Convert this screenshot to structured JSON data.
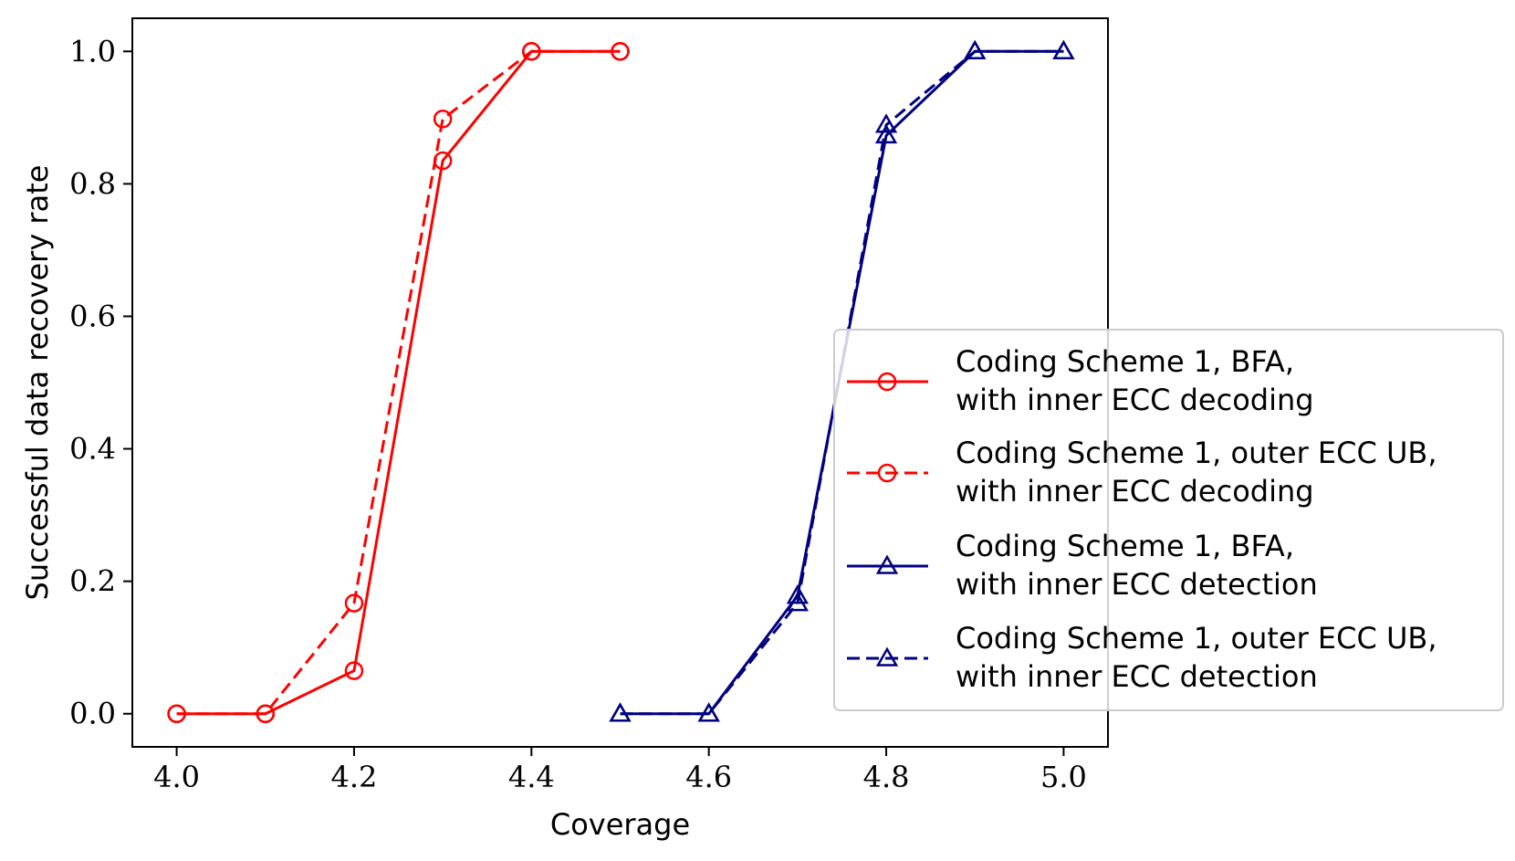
{
  "chart_data": {
    "type": "line",
    "title": "",
    "xlabel": "Coverage",
    "ylabel": "Successful data recovery rate",
    "xlim": [
      3.95,
      5.05
    ],
    "ylim": [
      -0.05,
      1.05
    ],
    "xticks": [
      4.0,
      4.2,
      4.4,
      4.6,
      4.8,
      5.0
    ],
    "xtick_labels": [
      "4.0",
      "4.2",
      "4.4",
      "4.6",
      "4.8",
      "5.0"
    ],
    "yticks": [
      0.0,
      0.2,
      0.4,
      0.6,
      0.8,
      1.0
    ],
    "ytick_labels": [
      "0.0",
      "0.2",
      "0.4",
      "0.6",
      "0.8",
      "1.0"
    ],
    "grid": false,
    "legend_position": "center-right",
    "series": [
      {
        "name": "Coding Scheme 1, BFA,\nwith inner ECC decoding",
        "legend_lines": [
          "Coding Scheme 1, BFA,",
          "with inner ECC decoding"
        ],
        "color": "#ff0000",
        "linestyle": "solid",
        "marker": "circle",
        "x": [
          4.0,
          4.1,
          4.2,
          4.3,
          4.4,
          4.5
        ],
        "y": [
          0.0,
          0.0,
          0.065,
          0.835,
          1.0,
          1.0
        ]
      },
      {
        "name": "Coding Scheme 1, outer ECC UB,\nwith inner ECC decoding",
        "legend_lines": [
          "Coding Scheme 1, outer ECC UB,",
          "with inner ECC decoding"
        ],
        "color": "#ff0000",
        "linestyle": "dashed",
        "marker": "circle",
        "x": [
          4.0,
          4.1,
          4.2,
          4.3,
          4.4,
          4.5
        ],
        "y": [
          0.0,
          0.0,
          0.167,
          0.898,
          1.0,
          1.0
        ]
      },
      {
        "name": "Coding Scheme 1, BFA,\nwith inner ECC detection",
        "legend_lines": [
          "Coding Scheme 1, BFA,",
          "with inner ECC detection"
        ],
        "color": "#000080",
        "linestyle": "solid",
        "marker": "triangle",
        "x": [
          4.5,
          4.6,
          4.7,
          4.8,
          4.9,
          5.0
        ],
        "y": [
          0.0,
          0.0,
          0.178,
          0.873,
          1.0,
          1.0
        ]
      },
      {
        "name": "Coding Scheme 1, outer ECC UB,\nwith inner ECC detection",
        "legend_lines": [
          "Coding Scheme 1, outer ECC UB,",
          "with inner ECC detection"
        ],
        "color": "#000080",
        "linestyle": "dashed",
        "marker": "triangle",
        "x": [
          4.5,
          4.6,
          4.7,
          4.8,
          4.9,
          5.0
        ],
        "y": [
          0.0,
          0.0,
          0.167,
          0.889,
          1.0,
          1.0
        ]
      }
    ]
  }
}
